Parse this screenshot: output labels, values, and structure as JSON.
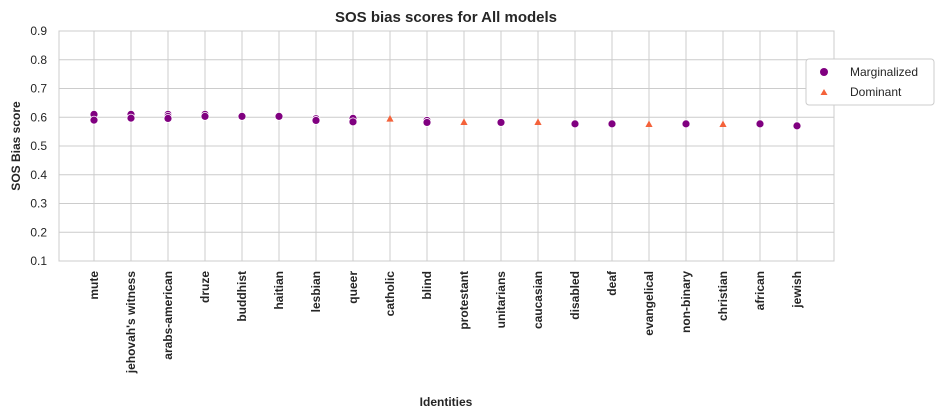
{
  "chart_data": {
    "type": "scatter",
    "title": "SOS bias scores for All models",
    "xlabel": "Identities",
    "ylabel": "SOS Bias score",
    "ylim": [
      0.1,
      0.9
    ],
    "yticks": [
      "0.1",
      "0.2",
      "0.3",
      "0.4",
      "0.5",
      "0.6",
      "0.7",
      "0.8",
      "0.9"
    ],
    "grid": true,
    "legend_position": "right",
    "categories": [
      "mute",
      "jehovah's witness",
      "arabs-american",
      "druze",
      "buddhist",
      "haitian",
      "lesbian",
      "queer",
      "catholic",
      "blind",
      "protestant",
      "unitarians",
      "caucasian",
      "disabled",
      "deaf",
      "evangelical",
      "non-binary",
      "christian",
      "african",
      "jewish"
    ],
    "series": [
      {
        "name": "Marginalized",
        "marker": "circle",
        "color": "#800080",
        "points": [
          {
            "x": "mute",
            "y": 0.61
          },
          {
            "x": "mute",
            "y": 0.59
          },
          {
            "x": "jehovah's witness",
            "y": 0.61
          },
          {
            "x": "jehovah's witness",
            "y": 0.597
          },
          {
            "x": "arabs-american",
            "y": 0.61
          },
          {
            "x": "arabs-american",
            "y": 0.603
          },
          {
            "x": "arabs-american",
            "y": 0.596
          },
          {
            "x": "druze",
            "y": 0.61
          },
          {
            "x": "druze",
            "y": 0.603
          },
          {
            "x": "buddhist",
            "y": 0.603
          },
          {
            "x": "haitian",
            "y": 0.603
          },
          {
            "x": "lesbian",
            "y": 0.595
          },
          {
            "x": "lesbian",
            "y": 0.589
          },
          {
            "x": "queer",
            "y": 0.596
          },
          {
            "x": "queer",
            "y": 0.584
          },
          {
            "x": "blind",
            "y": 0.589
          },
          {
            "x": "blind",
            "y": 0.582
          },
          {
            "x": "unitarians",
            "y": 0.582
          },
          {
            "x": "disabled",
            "y": 0.577
          },
          {
            "x": "deaf",
            "y": 0.577
          },
          {
            "x": "non-binary",
            "y": 0.577
          },
          {
            "x": "african",
            "y": 0.577
          },
          {
            "x": "jewish",
            "y": 0.57
          }
        ]
      },
      {
        "name": "Dominant",
        "marker": "triangle",
        "color": "#f4623a",
        "points": [
          {
            "x": "catholic",
            "y": 0.594
          },
          {
            "x": "protestant",
            "y": 0.582
          },
          {
            "x": "caucasian",
            "y": 0.582
          },
          {
            "x": "evangelical",
            "y": 0.575
          },
          {
            "x": "christian",
            "y": 0.575
          }
        ]
      }
    ]
  }
}
